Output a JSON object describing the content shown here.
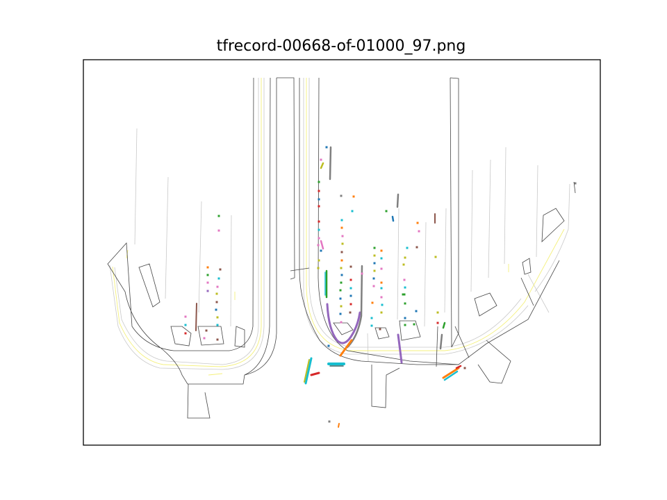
{
  "figure": {
    "title": "tfrecord-00668-of-01000_97.png"
  },
  "colors": {
    "road_edge": "#444444",
    "lane_center": "#c8c8c8",
    "yellow_line": "#f4f07a",
    "frame": "#000000",
    "agent_palette": [
      "#1f77b4",
      "#ff7f0e",
      "#2ca02c",
      "#d62728",
      "#9467bd",
      "#8c564b",
      "#e377c2",
      "#7f7f7f",
      "#bcbd22",
      "#17becf"
    ]
  }
}
